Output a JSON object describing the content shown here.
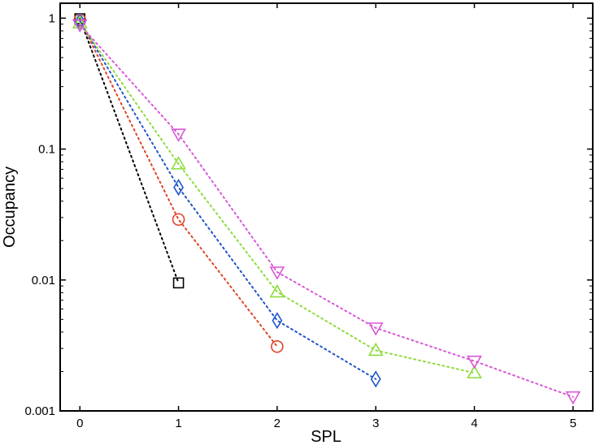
{
  "chart_data": {
    "type": "line",
    "xlabel": "SPL",
    "ylabel": "Occupancy",
    "xlim": [
      -0.2,
      5.2
    ],
    "ylim": [
      0.001,
      1.3
    ],
    "yscale": "log",
    "grid": false,
    "xticks": [
      0,
      1,
      2,
      3,
      4,
      5
    ],
    "xtick_labels": [
      "0",
      "1",
      "2",
      "3",
      "4",
      "5"
    ],
    "yticks": [
      0.001,
      0.01,
      0.1,
      1
    ],
    "ytick_labels": [
      "0.001",
      "0.01",
      "0.1",
      "1"
    ],
    "series": [
      {
        "color": "#000000",
        "marker": "square",
        "line_style": "dotted",
        "x": [
          0,
          1
        ],
        "y": [
          0.99,
          0.0095
        ]
      },
      {
        "color": "#e0452a",
        "marker": "circle",
        "line_style": "dotted",
        "x": [
          0,
          1,
          2
        ],
        "y": [
          0.97,
          0.029,
          0.0031
        ]
      },
      {
        "color": "#1f55c9",
        "marker": "diamond",
        "line_style": "dotted",
        "x": [
          0,
          1,
          2,
          3
        ],
        "y": [
          0.95,
          0.051,
          0.0049,
          0.00175
        ]
      },
      {
        "color": "#8edb3c",
        "marker": "triangle-up",
        "line_style": "dotted",
        "x": [
          0,
          1,
          2,
          3,
          4
        ],
        "y": [
          0.92,
          0.077,
          0.0081,
          0.0029,
          0.00195
        ]
      },
      {
        "color": "#d957d6",
        "marker": "triangle-down",
        "line_style": "dotted",
        "x": [
          0,
          1,
          2,
          3,
          4,
          5
        ],
        "y": [
          0.89,
          0.13,
          0.0115,
          0.0043,
          0.0024,
          0.00128
        ]
      }
    ]
  }
}
